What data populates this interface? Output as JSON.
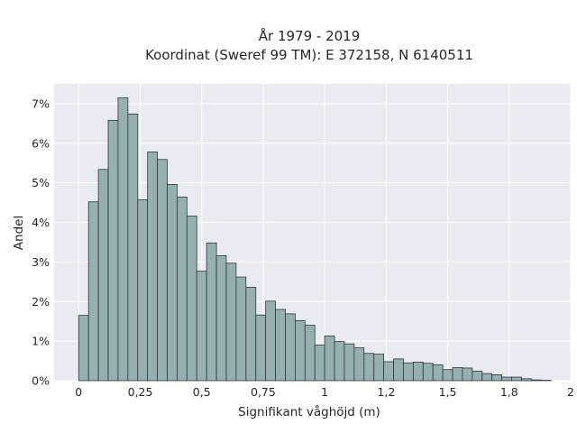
{
  "chart_data": {
    "type": "bar",
    "title": "År 1979 - 2019",
    "subtitle": "Koordinat (Sweref 99 TM): E 372158, N 6140511",
    "xlabel": "Signifikant våghöjd (m)",
    "ylabel": "Andel",
    "xlim": [
      -0.1,
      2.0
    ],
    "ylim": [
      0,
      7.5
    ],
    "grid": true,
    "bin_width": 0.04,
    "x_start": 0.0,
    "xticks": [
      {
        "value": 0,
        "label": "0"
      },
      {
        "value": 0.25,
        "label": "0,25"
      },
      {
        "value": 0.5,
        "label": "0,5"
      },
      {
        "value": 0.75,
        "label": "0,75"
      },
      {
        "value": 1.0,
        "label": "1"
      },
      {
        "value": 1.25,
        "label": "1,2"
      },
      {
        "value": 1.5,
        "label": "1,5"
      },
      {
        "value": 1.75,
        "label": "1,8"
      },
      {
        "value": 2.0,
        "label": "2"
      }
    ],
    "yticks": [
      {
        "value": 0,
        "label": "0%"
      },
      {
        "value": 1,
        "label": "1%"
      },
      {
        "value": 2,
        "label": "2%"
      },
      {
        "value": 3,
        "label": "3%"
      },
      {
        "value": 4,
        "label": "4%"
      },
      {
        "value": 5,
        "label": "5%"
      },
      {
        "value": 6,
        "label": "6%"
      },
      {
        "value": 7,
        "label": "7%"
      }
    ],
    "values": [
      1.65,
      4.52,
      5.34,
      6.58,
      7.15,
      6.74,
      4.57,
      5.78,
      5.59,
      4.96,
      4.64,
      4.16,
      2.77,
      3.48,
      3.16,
      2.97,
      2.62,
      2.36,
      1.66,
      2.01,
      1.8,
      1.69,
      1.52,
      1.4,
      0.9,
      1.13,
      0.99,
      0.93,
      0.83,
      0.69,
      0.67,
      0.48,
      0.55,
      0.45,
      0.47,
      0.44,
      0.4,
      0.28,
      0.33,
      0.32,
      0.24,
      0.18,
      0.15,
      0.09,
      0.09,
      0.05,
      0.02,
      0.01
    ],
    "colors": {
      "bar_fill": "#95b0ae",
      "bar_edge": "#2f3a3a",
      "plot_background": "#eaeaf2",
      "grid": "#ffffff"
    }
  }
}
